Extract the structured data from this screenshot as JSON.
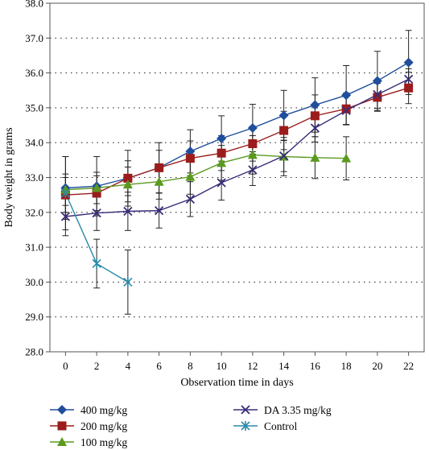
{
  "chart_data": {
    "type": "line",
    "title": "",
    "xlabel": "Observation time in days",
    "ylabel": "Body weight in grams",
    "xlim": [
      -1,
      23
    ],
    "ylim": [
      28.0,
      38.0
    ],
    "x_ticks": [
      0,
      2,
      4,
      6,
      8,
      10,
      12,
      14,
      16,
      18,
      20,
      22
    ],
    "y_ticks": [
      28.0,
      29.0,
      30.0,
      31.0,
      32.0,
      33.0,
      34.0,
      35.0,
      36.0,
      37.0,
      38.0
    ],
    "x_tick_labels": [
      "0",
      "2",
      "4",
      "6",
      "8",
      "10",
      "12",
      "14",
      "16",
      "18",
      "20",
      "22"
    ],
    "y_tick_labels": [
      "28.0",
      "29.0",
      "30.0",
      "31.0",
      "32.0",
      "33.0",
      "34.0",
      "35.0",
      "36.0",
      "37.0",
      "38.0"
    ],
    "grid": "horizontal dotted",
    "legend_position": "bottom",
    "series": [
      {
        "name": "400 mg/kg",
        "color": "#1f4e9c",
        "marker": "diamond",
        "x": [
          0,
          2,
          4,
          6,
          8,
          10,
          12,
          14,
          16,
          18,
          20,
          22
        ],
        "y": [
          32.7,
          32.75,
          32.98,
          33.28,
          33.75,
          34.12,
          34.42,
          34.78,
          35.08,
          35.36,
          35.77,
          36.3
        ],
        "err": [
          0.9,
          0.85,
          0.8,
          0.72,
          0.62,
          0.65,
          0.68,
          0.72,
          0.78,
          0.85,
          0.85,
          0.92
        ]
      },
      {
        "name": "200 mg/kg",
        "color": "#9b1c1c",
        "marker": "square",
        "x": [
          0,
          2,
          4,
          6,
          8,
          10,
          12,
          14,
          16,
          18,
          20,
          22
        ],
        "y": [
          32.5,
          32.55,
          32.98,
          33.28,
          33.55,
          33.7,
          33.97,
          34.35,
          34.77,
          34.97,
          35.3,
          35.57
        ],
        "err": [
          0.5,
          0.5,
          0.5,
          0.5,
          0.5,
          0.5,
          0.5,
          0.55,
          0.6,
          0.45,
          0.4,
          0.45
        ]
      },
      {
        "name": "100 mg/kg",
        "color": "#5a9a1f",
        "marker": "triangle",
        "x": [
          0,
          2,
          4,
          6,
          8,
          10,
          12,
          14,
          16,
          18
        ],
        "y": [
          32.65,
          32.7,
          32.8,
          32.88,
          33.02,
          33.42,
          33.65,
          33.6,
          33.57,
          33.55
        ],
        "err": [
          0.45,
          0.45,
          0.5,
          0.5,
          0.5,
          0.5,
          0.55,
          0.55,
          0.6,
          0.62
        ]
      },
      {
        "name": "DA 3.35 mg/kg",
        "color": "#3b2b78",
        "marker": "x",
        "x": [
          0,
          2,
          4,
          6,
          8,
          10,
          12,
          14,
          16,
          18,
          20,
          22
        ],
        "y": [
          31.88,
          31.98,
          32.03,
          32.05,
          32.38,
          32.85,
          33.22,
          33.62,
          34.42,
          34.92,
          35.38,
          35.82
        ],
        "err": [
          0.55,
          0.5,
          0.55,
          0.5,
          0.5,
          0.5,
          0.45,
          0.45,
          0.4,
          0.4,
          0.4,
          0.3
        ]
      },
      {
        "name": "Control",
        "color": "#2a8aa8",
        "marker": "asterisk",
        "x": [
          0,
          2,
          4
        ],
        "y": [
          32.55,
          30.53,
          30.0
        ],
        "err": [
          1.05,
          0.7,
          0.92
        ]
      }
    ]
  }
}
